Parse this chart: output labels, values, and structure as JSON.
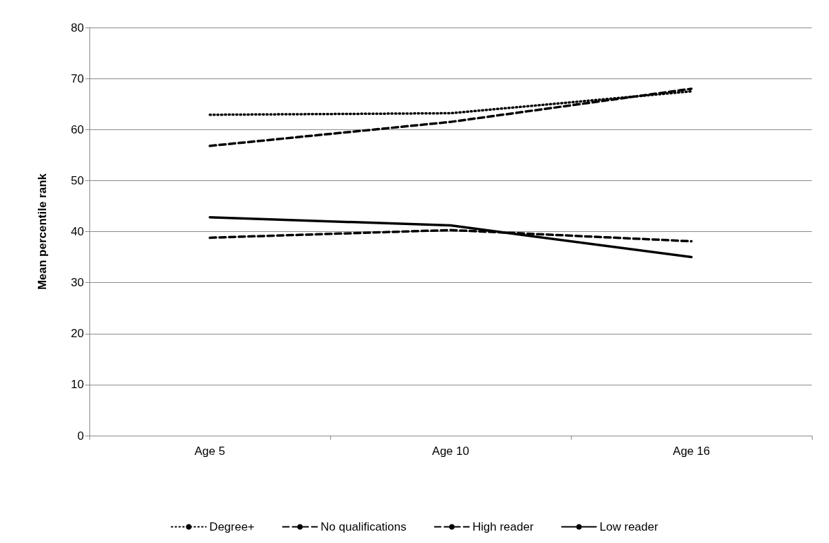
{
  "chart_data": {
    "type": "line",
    "ylabel": "Mean percentile rank",
    "categories": [
      "Age 5",
      "Age 10",
      "Age 16"
    ],
    "series": [
      {
        "name": "Degree+",
        "color": "#000000",
        "line_style": "dotted",
        "values": [
          62.9,
          63.2,
          67.5
        ]
      },
      {
        "name": "No qualifications",
        "color": "#000000",
        "line_style": "dashed",
        "values": [
          38.8,
          40.3,
          38.1
        ]
      },
      {
        "name": "High reader",
        "color": "#000000",
        "line_style": "dashed",
        "values": [
          56.8,
          61.5,
          68.0
        ]
      },
      {
        "name": "Low reader",
        "color": "#000000",
        "line_style": "solid",
        "values": [
          42.8,
          41.2,
          35.0
        ]
      }
    ],
    "ylim": [
      0,
      80
    ],
    "yticks": [
      0,
      10,
      20,
      30,
      40,
      50,
      60,
      70,
      80
    ],
    "grid": "y",
    "legend": "bottom",
    "marker": "none"
  }
}
